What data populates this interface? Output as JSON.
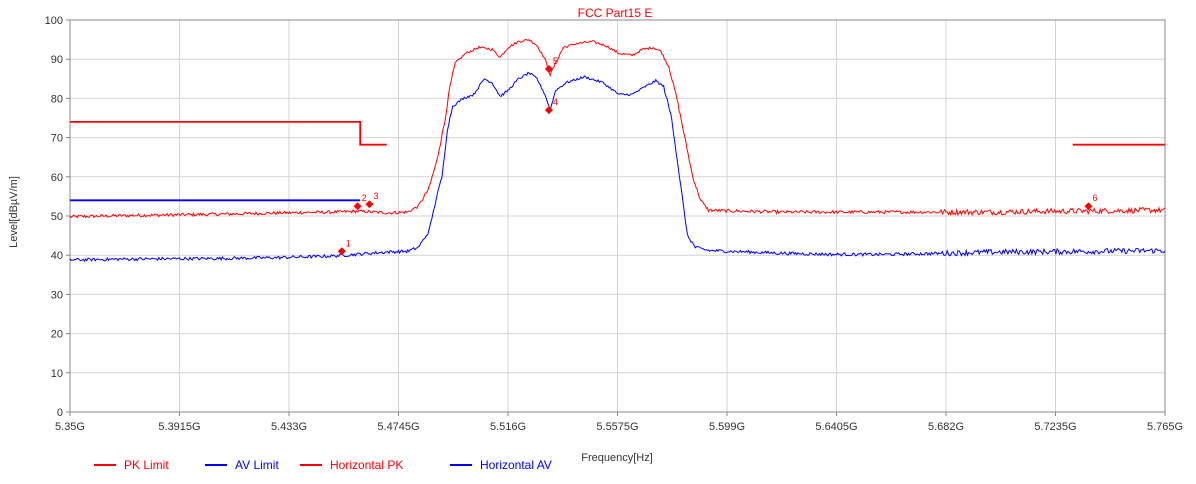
{
  "chart_data": {
    "type": "line",
    "title": "FCC Part15 E",
    "xlabel": "Frequency[Hz]",
    "ylabel": "Level[dBµV/m]",
    "xlim": [
      5.35,
      5.765
    ],
    "ylim": [
      0,
      100
    ],
    "grid": true,
    "legend_position": "bottom-left",
    "x_ticks": [
      5.35,
      5.3915,
      5.433,
      5.4745,
      5.516,
      5.5575,
      5.599,
      5.6405,
      5.682,
      5.7235,
      5.765
    ],
    "x_tick_labels": [
      "5.35G",
      "5.3915G",
      "5.433G",
      "5.4745G",
      "5.516G",
      "5.5575G",
      "5.599G",
      "5.6405G",
      "5.682G",
      "5.7235G",
      "5.765G"
    ],
    "y_ticks": [
      0,
      10,
      20,
      30,
      40,
      50,
      60,
      70,
      80,
      90,
      100
    ],
    "y_tick_labels": [
      "0",
      "10",
      "20",
      "30",
      "40",
      "50",
      "60",
      "70",
      "80",
      "90",
      "100"
    ],
    "colors": {
      "red": "#ff0000",
      "blue": "#0000ff",
      "grid": "#d4d4d4",
      "axis": "#888888"
    },
    "series": [
      {
        "name": "PK Limit",
        "color": "#ff0000",
        "segments": [
          [
            [
              5.35,
              74
            ],
            [
              5.46,
              74
            ],
            [
              5.46,
              68.2
            ],
            [
              5.47,
              68.2
            ]
          ],
          [
            [
              5.73,
              68.2
            ],
            [
              5.765,
              68.2
            ]
          ]
        ]
      },
      {
        "name": "AV Limit",
        "color": "#0000ff",
        "segments": [
          [
            [
              5.35,
              54
            ],
            [
              5.46,
              54
            ]
          ]
        ]
      },
      {
        "name": "Horizontal PK",
        "color": "#ff0000",
        "noisy": true,
        "points": [
          [
            5.35,
            49.8
          ],
          [
            5.37,
            50.1
          ],
          [
            5.39,
            50.3
          ],
          [
            5.41,
            50.5
          ],
          [
            5.43,
            50.8
          ],
          [
            5.45,
            51
          ],
          [
            5.46,
            51.2
          ],
          [
            5.47,
            50.8
          ],
          [
            5.478,
            51
          ],
          [
            5.482,
            52.5
          ],
          [
            5.486,
            57
          ],
          [
            5.489,
            64
          ],
          [
            5.492,
            74
          ],
          [
            5.494,
            83
          ],
          [
            5.496,
            89
          ],
          [
            5.5,
            91.5
          ],
          [
            5.505,
            93
          ],
          [
            5.51,
            92.5
          ],
          [
            5.513,
            90.5
          ],
          [
            5.516,
            93
          ],
          [
            5.52,
            94.5
          ],
          [
            5.524,
            95
          ],
          [
            5.527,
            93.5
          ],
          [
            5.53,
            90
          ],
          [
            5.532,
            86
          ],
          [
            5.534,
            89
          ],
          [
            5.537,
            93
          ],
          [
            5.542,
            94
          ],
          [
            5.548,
            94.5
          ],
          [
            5.553,
            93.5
          ],
          [
            5.558,
            91.5
          ],
          [
            5.563,
            91
          ],
          [
            5.567,
            92.5
          ],
          [
            5.571,
            93
          ],
          [
            5.574,
            92
          ],
          [
            5.577,
            88
          ],
          [
            5.58,
            80
          ],
          [
            5.583,
            70
          ],
          [
            5.586,
            60
          ],
          [
            5.589,
            54
          ],
          [
            5.592,
            51.5
          ],
          [
            5.6,
            51.3
          ],
          [
            5.62,
            51
          ],
          [
            5.64,
            51
          ],
          [
            5.66,
            51
          ],
          [
            5.682,
            51
          ],
          [
            5.7,
            51
          ],
          [
            5.72,
            51.2
          ],
          [
            5.74,
            51.3
          ],
          [
            5.765,
            51.5
          ]
        ]
      },
      {
        "name": "Horizontal AV",
        "color": "#0000ff",
        "noisy": true,
        "points": [
          [
            5.35,
            38.8
          ],
          [
            5.37,
            39
          ],
          [
            5.39,
            39.1
          ],
          [
            5.41,
            39.2
          ],
          [
            5.43,
            39.4
          ],
          [
            5.45,
            39.8
          ],
          [
            5.46,
            40.3
          ],
          [
            5.47,
            40.8
          ],
          [
            5.478,
            41
          ],
          [
            5.482,
            42
          ],
          [
            5.486,
            46
          ],
          [
            5.489,
            55
          ],
          [
            5.491,
            60
          ],
          [
            5.493,
            72
          ],
          [
            5.495,
            78
          ],
          [
            5.499,
            80
          ],
          [
            5.503,
            81
          ],
          [
            5.507,
            85
          ],
          [
            5.51,
            84
          ],
          [
            5.513,
            80.5
          ],
          [
            5.516,
            82
          ],
          [
            5.52,
            85
          ],
          [
            5.524,
            86.5
          ],
          [
            5.527,
            85
          ],
          [
            5.53,
            81
          ],
          [
            5.532,
            77
          ],
          [
            5.534,
            82
          ],
          [
            5.538,
            84
          ],
          [
            5.545,
            85.5
          ],
          [
            5.552,
            84
          ],
          [
            5.558,
            81
          ],
          [
            5.563,
            81
          ],
          [
            5.568,
            83
          ],
          [
            5.572,
            84.5
          ],
          [
            5.575,
            83
          ],
          [
            5.578,
            75
          ],
          [
            5.581,
            60
          ],
          [
            5.584,
            45
          ],
          [
            5.587,
            42
          ],
          [
            5.592,
            41.2
          ],
          [
            5.6,
            41
          ],
          [
            5.62,
            40.5
          ],
          [
            5.64,
            40.2
          ],
          [
            5.66,
            40.2
          ],
          [
            5.682,
            40.5
          ],
          [
            5.7,
            40.8
          ],
          [
            5.72,
            40.9
          ],
          [
            5.74,
            41
          ],
          [
            5.765,
            41.2
          ]
        ]
      }
    ],
    "markers": [
      {
        "label": "1",
        "x": 5.453,
        "y": 41
      },
      {
        "label": "2",
        "x": 5.459,
        "y": 52.5
      },
      {
        "label": "3",
        "x": 5.4635,
        "y": 53
      },
      {
        "label": "4",
        "x": 5.5315,
        "y": 77
      },
      {
        "label": "5",
        "x": 5.5315,
        "y": 87.5
      },
      {
        "label": "6",
        "x": 5.736,
        "y": 52.5
      }
    ],
    "legend": [
      {
        "name": "PK Limit",
        "color": "#ff0000"
      },
      {
        "name": "AV Limit",
        "color": "#0000ff"
      },
      {
        "name": "Horizontal PK",
        "color": "#ff0000"
      },
      {
        "name": "Horizontal AV",
        "color": "#0000ff"
      }
    ]
  }
}
